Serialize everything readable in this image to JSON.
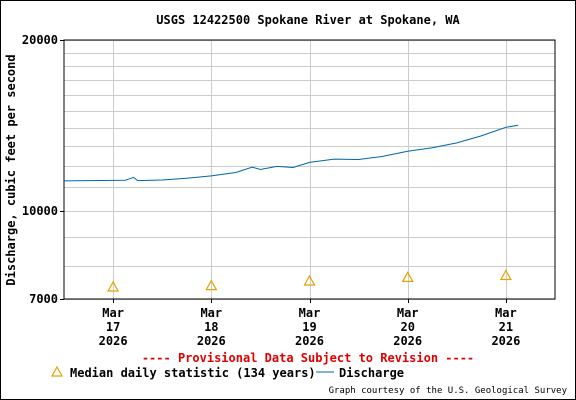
{
  "chart_data": {
    "type": "line",
    "title": "USGS 12422500 Spokane River at Spokane, WA",
    "ylabel": "Discharge, cubic feet per second",
    "y_scale": "log",
    "ylim": [
      7000,
      20000
    ],
    "y_ticks": [
      {
        "value": 20000,
        "label": "20000"
      },
      {
        "value": 10000,
        "label": "10000"
      },
      {
        "value": 7000,
        "label": "7000"
      }
    ],
    "y_minor_gridlines": [
      8000,
      9000,
      11000,
      12000,
      13000,
      14000,
      15000,
      16000,
      17000,
      18000,
      19000
    ],
    "xlim": [
      "2026-03-16T12:00",
      "2026-03-21T12:00"
    ],
    "x_ticks": [
      {
        "value": "2026-03-17",
        "lines": [
          "Mar",
          "17",
          "2026"
        ]
      },
      {
        "value": "2026-03-18",
        "lines": [
          "Mar",
          "18",
          "2026"
        ]
      },
      {
        "value": "2026-03-19",
        "lines": [
          "Mar",
          "19",
          "2026"
        ]
      },
      {
        "value": "2026-03-20",
        "lines": [
          "Mar",
          "20",
          "2026"
        ]
      },
      {
        "value": "2026-03-21",
        "lines": [
          "Mar",
          "21",
          "2026"
        ]
      }
    ],
    "grid": true,
    "legend_position": "bottom",
    "series": [
      {
        "name": "Discharge",
        "kind": "line",
        "color": "#0066aa",
        "points": [
          {
            "x": "2026-03-16T12:00",
            "y": 11300
          },
          {
            "x": "2026-03-16T18:00",
            "y": 11310
          },
          {
            "x": "2026-03-17T00:00",
            "y": 11320
          },
          {
            "x": "2026-03-17T03:00",
            "y": 11330
          },
          {
            "x": "2026-03-17T05:00",
            "y": 11460
          },
          {
            "x": "2026-03-17T06:00",
            "y": 11310
          },
          {
            "x": "2026-03-17T12:00",
            "y": 11340
          },
          {
            "x": "2026-03-17T18:00",
            "y": 11420
          },
          {
            "x": "2026-03-18T00:00",
            "y": 11530
          },
          {
            "x": "2026-03-18T06:00",
            "y": 11690
          },
          {
            "x": "2026-03-18T10:00",
            "y": 11950
          },
          {
            "x": "2026-03-18T12:00",
            "y": 11830
          },
          {
            "x": "2026-03-18T16:00",
            "y": 11980
          },
          {
            "x": "2026-03-18T20:00",
            "y": 11930
          },
          {
            "x": "2026-03-19T00:00",
            "y": 12180
          },
          {
            "x": "2026-03-19T06:00",
            "y": 12340
          },
          {
            "x": "2026-03-19T12:00",
            "y": 12320
          },
          {
            "x": "2026-03-19T18:00",
            "y": 12480
          },
          {
            "x": "2026-03-20T00:00",
            "y": 12740
          },
          {
            "x": "2026-03-20T06:00",
            "y": 12920
          },
          {
            "x": "2026-03-20T12:00",
            "y": 13180
          },
          {
            "x": "2026-03-20T18:00",
            "y": 13560
          },
          {
            "x": "2026-03-21T00:00",
            "y": 14040
          },
          {
            "x": "2026-03-21T03:00",
            "y": 14160
          }
        ]
      },
      {
        "name": "Median daily statistic (134 years)",
        "kind": "marker",
        "marker": "triangle",
        "color": "#e8a000",
        "points": [
          {
            "x": "2026-03-17T00:00",
            "y": 7350
          },
          {
            "x": "2026-03-18T00:00",
            "y": 7390
          },
          {
            "x": "2026-03-19T00:00",
            "y": 7530
          },
          {
            "x": "2026-03-20T00:00",
            "y": 7640
          },
          {
            "x": "2026-03-21T00:00",
            "y": 7700
          }
        ]
      }
    ],
    "footer": {
      "provisional": "---- Provisional Data Subject to Revision ----",
      "credit": "Graph courtesy of the U.S. Geological Survey"
    }
  }
}
